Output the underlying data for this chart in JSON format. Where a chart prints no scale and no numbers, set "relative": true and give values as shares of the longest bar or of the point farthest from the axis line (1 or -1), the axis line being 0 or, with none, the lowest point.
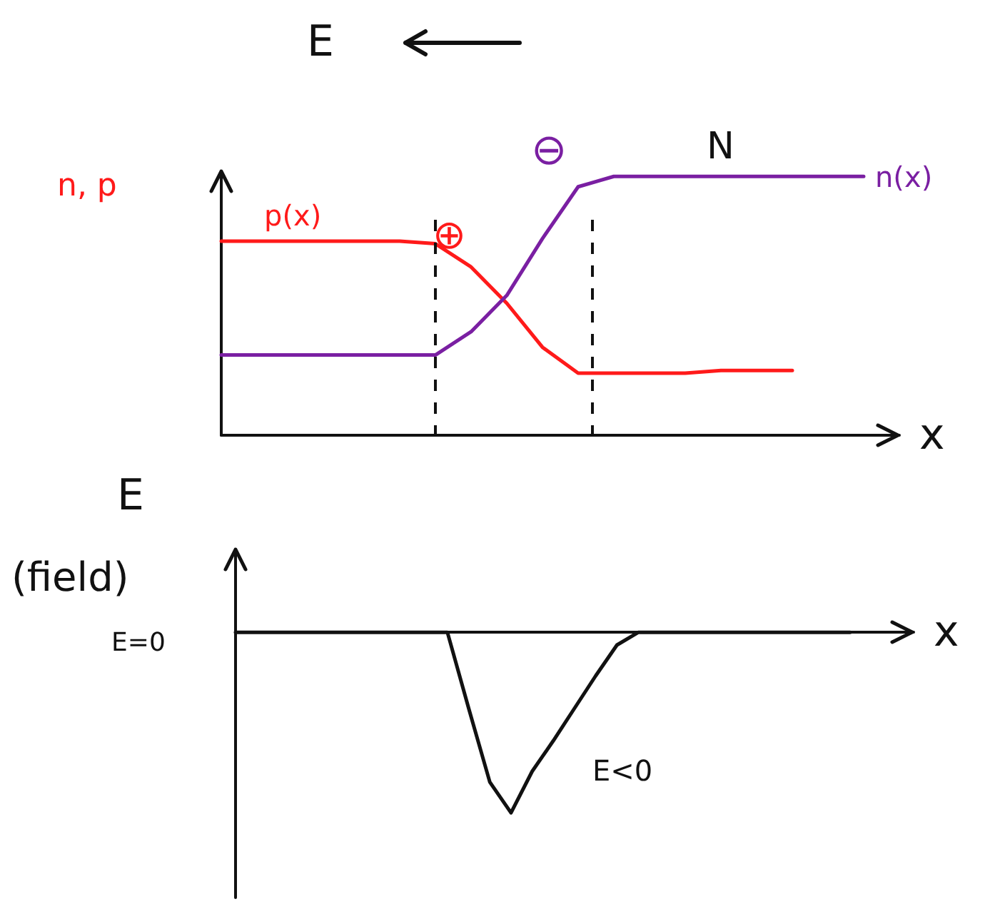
{
  "chart_data": [
    {
      "type": "line",
      "title": "E",
      "ylabel": "n, p",
      "xlabel": "x",
      "relative": true,
      "legend": false,
      "marker": "none",
      "line_style": "solid",
      "categories": [
        null,
        null,
        null,
        null,
        null,
        null,
        null,
        null,
        null,
        null,
        null,
        null,
        null,
        null,
        null,
        null,
        null,
        null,
        null,
        null
      ],
      "series": [
        {
          "name": "p(x)",
          "color": "#ff1a1a",
          "values": [
            0.75,
            0.75,
            0.75,
            0.75,
            0.75,
            0.75,
            0.74,
            0.65,
            0.51,
            0.34,
            0.24,
            0.24,
            0.24,
            0.24,
            0.25,
            0.25,
            0.25,
            null,
            null,
            null
          ]
        },
        {
          "name": "n(x)",
          "color": "#7a1fa2",
          "values": [
            0.31,
            0.31,
            0.31,
            0.31,
            0.31,
            0.31,
            0.31,
            0.4,
            0.54,
            0.76,
            0.96,
            1,
            1,
            1,
            1,
            1,
            1,
            1,
            1,
            null
          ]
        }
      ],
      "annotations": [
        "⊕",
        "⊖",
        "N"
      ]
    },
    {
      "type": "line",
      "title": "E",
      "ylabel": "(field)",
      "xlabel": "x",
      "relative": true,
      "legend": false,
      "marker": "none",
      "line_style": "solid",
      "categories": [
        null,
        null,
        null,
        null,
        null,
        null,
        null,
        null,
        null,
        null,
        null,
        null,
        null,
        null,
        null,
        null,
        null,
        null,
        null,
        null,
        null,
        null,
        null,
        null,
        null,
        null,
        null,
        null,
        null,
        null,
        null,
        null,
        null
      ],
      "series": [
        {
          "color": "#111111",
          "values": [
            0,
            0,
            0,
            0,
            0,
            0,
            0,
            0,
            0,
            0,
            0,
            -0.42,
            -0.83,
            -1,
            -0.77,
            -0.6,
            -0.42,
            -0.24,
            -0.07,
            0,
            0,
            0,
            0,
            0,
            0,
            0,
            0,
            0,
            0,
            0,
            null,
            null,
            null
          ]
        }
      ],
      "annotations": [
        "E=0",
        "E<0"
      ]
    }
  ]
}
